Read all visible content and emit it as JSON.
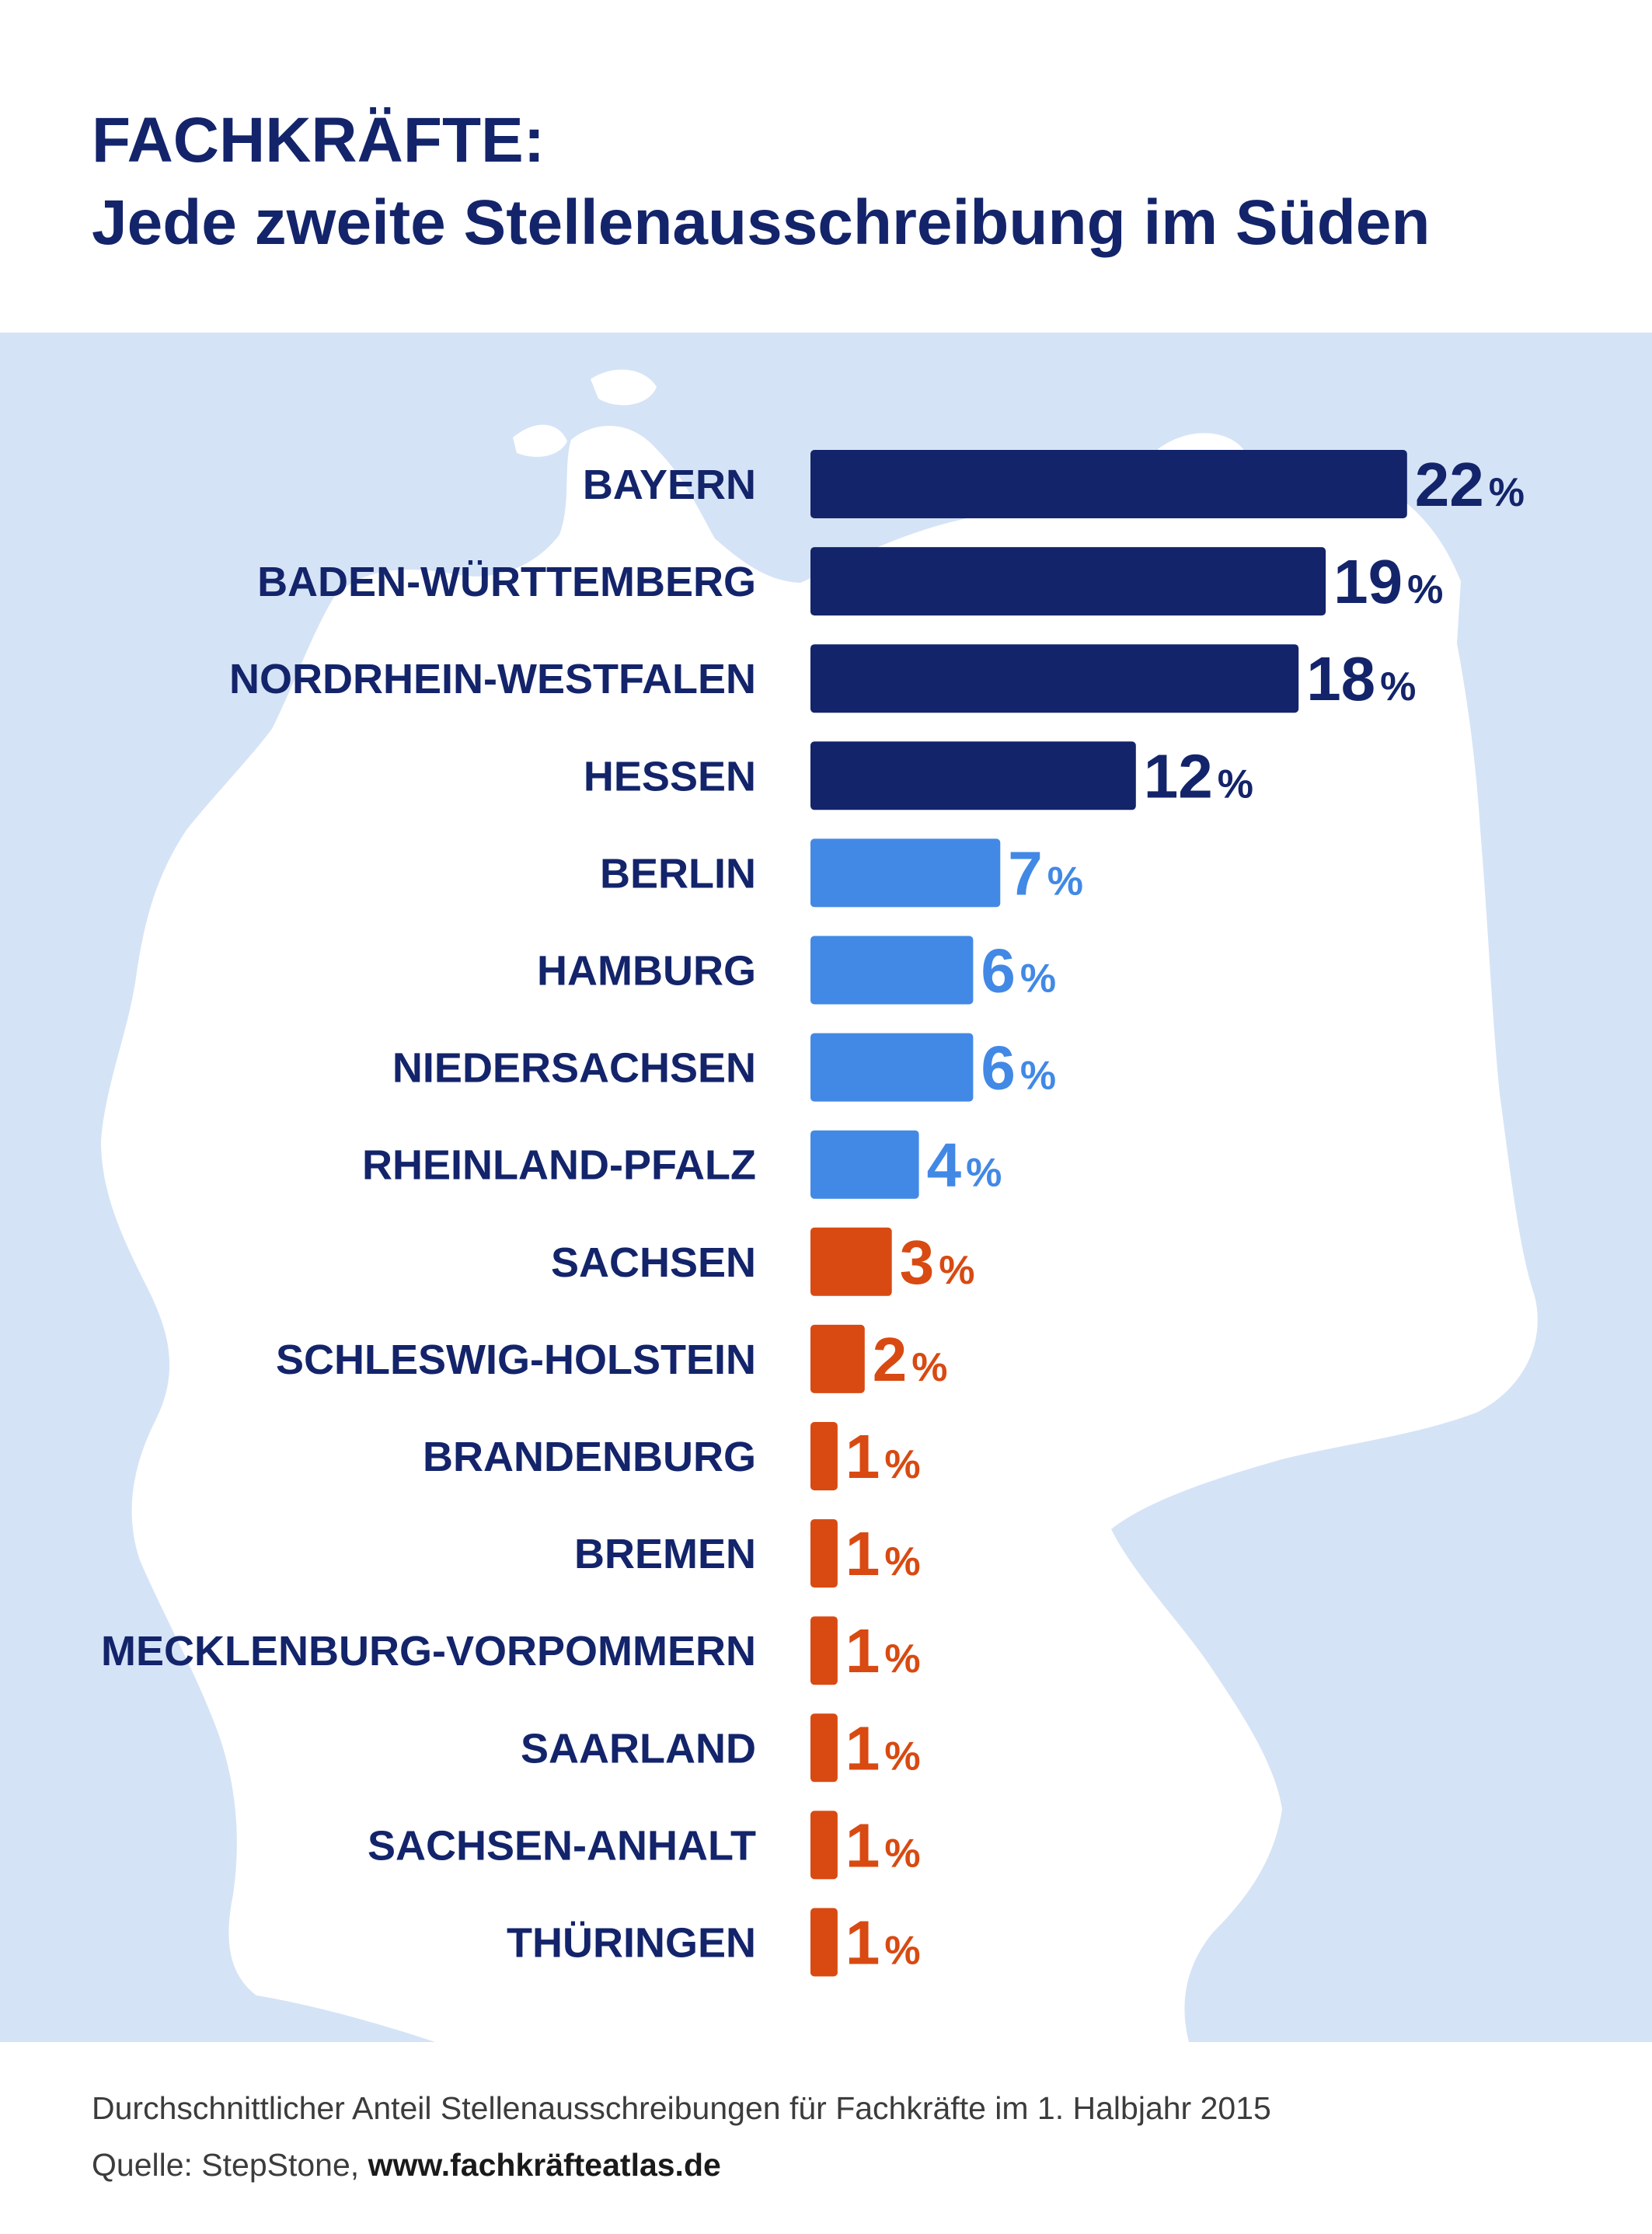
{
  "header": {
    "title_line1": "FACHKRÄFTE:",
    "title_line2": "Jede zweite Stellenausschreibung im Süden"
  },
  "chart_data": {
    "type": "bar",
    "orientation": "horizontal",
    "categories": [
      "BAYERN",
      "BADEN-WÜRTTEMBERG",
      "NORDRHEIN-WESTFALEN",
      "HESSEN",
      "BERLIN",
      "HAMBURG",
      "NIEDERSACHSEN",
      "RHEINLAND-PFALZ",
      "SACHSEN",
      "SCHLESWIG-HOLSTEIN",
      "BRANDENBURG",
      "BREMEN",
      "MECKLENBURG-VORPOMMERN",
      "SAARLAND",
      "SACHSEN-ANHALT",
      "THÜRINGEN"
    ],
    "values": [
      22,
      19,
      18,
      12,
      7,
      6,
      6,
      4,
      3,
      2,
      1,
      1,
      1,
      1,
      1,
      1
    ],
    "unit": "%",
    "tiers": [
      "dark",
      "dark",
      "dark",
      "dark",
      "light",
      "light",
      "light",
      "light",
      "orange",
      "orange",
      "orange",
      "orange",
      "orange",
      "orange",
      "orange",
      "orange"
    ],
    "colors": {
      "dark": "#13246b",
      "light": "#4289e6",
      "orange": "#d84a12",
      "label": "#13246b",
      "panel": "#d5e3f6",
      "map": "#ffffff"
    },
    "background": "map of Germany"
  },
  "footer": {
    "note": "Durchschnittlicher Anteil Stellenausschreibungen für Fachkräfte im 1. Halbjahr 2015",
    "source_prefix": "Quelle: StepStone,",
    "source_link": "www.fachkräfteatlas.de"
  }
}
